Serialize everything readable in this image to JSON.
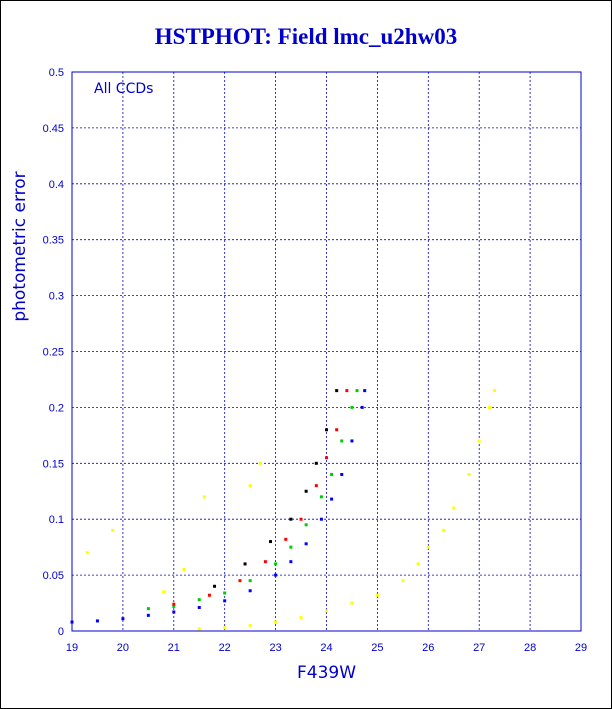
{
  "chart_data": {
    "type": "scatter",
    "title": "HSTPHOT: Field lmc_u2hw03",
    "xlabel": "F439W",
    "ylabel": "photometric error",
    "annotation": "All CCDs",
    "xlim": [
      19,
      29
    ],
    "ylim": [
      0,
      0.5
    ],
    "x_ticks": [
      "19",
      "20",
      "21",
      "22",
      "23",
      "24",
      "25",
      "26",
      "27",
      "28",
      "29"
    ],
    "y_ticks": [
      "0",
      "0.05",
      "0.1",
      "0.15",
      "0.2",
      "0.25",
      "0.3",
      "0.35",
      "0.4",
      "0.45",
      "0.5"
    ],
    "grid": true,
    "colors": {
      "axis": "#0000cc",
      "grid": "#0000cc",
      "title": "#0000cc"
    },
    "series": [
      {
        "color": "#0000ff",
        "points": [
          [
            19.0,
            0.008
          ],
          [
            19.5,
            0.009
          ],
          [
            20.0,
            0.011
          ],
          [
            20.5,
            0.014
          ],
          [
            21.0,
            0.017
          ],
          [
            21.5,
            0.021
          ],
          [
            22.0,
            0.027
          ],
          [
            22.5,
            0.036
          ],
          [
            23.0,
            0.05
          ],
          [
            23.3,
            0.062
          ],
          [
            23.6,
            0.078
          ],
          [
            23.9,
            0.1
          ],
          [
            24.1,
            0.118
          ],
          [
            24.3,
            0.14
          ],
          [
            24.5,
            0.17
          ],
          [
            24.7,
            0.2
          ],
          [
            24.75,
            0.215
          ]
        ]
      },
      {
        "color": "#00cc00",
        "points": [
          [
            20.5,
            0.02
          ],
          [
            21.0,
            0.022
          ],
          [
            21.5,
            0.028
          ],
          [
            22.0,
            0.034
          ],
          [
            22.5,
            0.045
          ],
          [
            23.0,
            0.06
          ],
          [
            23.3,
            0.075
          ],
          [
            23.6,
            0.095
          ],
          [
            23.9,
            0.12
          ],
          [
            24.1,
            0.14
          ],
          [
            24.3,
            0.17
          ],
          [
            24.5,
            0.2
          ],
          [
            24.6,
            0.215
          ]
        ]
      },
      {
        "color": "#ff0000",
        "points": [
          [
            21.0,
            0.024
          ],
          [
            21.7,
            0.032
          ],
          [
            22.3,
            0.045
          ],
          [
            22.8,
            0.062
          ],
          [
            23.2,
            0.082
          ],
          [
            23.5,
            0.1
          ],
          [
            23.8,
            0.13
          ],
          [
            24.0,
            0.155
          ],
          [
            24.2,
            0.18
          ],
          [
            24.4,
            0.215
          ]
        ]
      },
      {
        "color": "#000000",
        "points": [
          [
            21.8,
            0.04
          ],
          [
            22.4,
            0.06
          ],
          [
            22.9,
            0.08
          ],
          [
            23.3,
            0.1
          ],
          [
            23.6,
            0.125
          ],
          [
            23.8,
            0.15
          ],
          [
            24.0,
            0.18
          ],
          [
            24.2,
            0.215
          ]
        ]
      },
      {
        "color": "#ffff00",
        "points": [
          [
            21.5,
            0.002
          ],
          [
            22.0,
            0.003
          ],
          [
            22.5,
            0.005
          ],
          [
            23.0,
            0.008
          ],
          [
            23.5,
            0.012
          ],
          [
            24.0,
            0.018
          ],
          [
            24.5,
            0.025
          ],
          [
            25.0,
            0.032
          ],
          [
            25.5,
            0.045
          ],
          [
            25.8,
            0.06
          ],
          [
            26.0,
            0.075
          ],
          [
            26.3,
            0.09
          ],
          [
            26.5,
            0.11
          ],
          [
            26.8,
            0.14
          ],
          [
            27.0,
            0.17
          ],
          [
            27.2,
            0.2
          ],
          [
            27.3,
            0.215
          ],
          [
            19.3,
            0.07
          ],
          [
            19.8,
            0.09
          ],
          [
            21.6,
            0.12
          ],
          [
            22.7,
            0.15
          ],
          [
            21.2,
            0.055
          ],
          [
            20.8,
            0.035
          ],
          [
            22.5,
            0.13
          ]
        ]
      }
    ]
  }
}
